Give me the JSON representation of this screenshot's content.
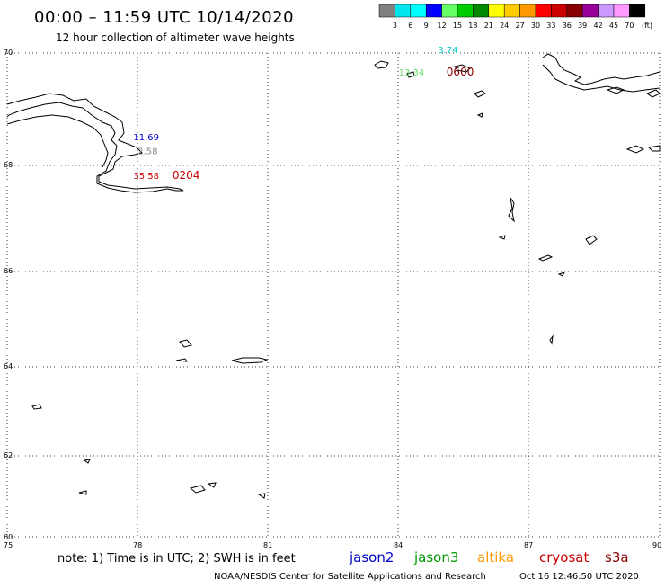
{
  "header": {
    "title": "00:00 – 11:59 UTC 10/14/2020",
    "subtitle": "12 hour collection of altimeter wave heights"
  },
  "color_scale": {
    "labels": [
      "3",
      "6",
      "9",
      "12",
      "15",
      "18",
      "21",
      "24",
      "27",
      "30",
      "33",
      "36",
      "39",
      "42",
      "45",
      "70"
    ],
    "unit": "(ft)",
    "colors": [
      "#808080",
      "#00e5ee",
      "#00ffff",
      "#0000ff",
      "#66ff66",
      "#00cc00",
      "#008800",
      "#ffff00",
      "#ffcc00",
      "#ff9900",
      "#ff0000",
      "#cc0000",
      "#880000",
      "#990099",
      "#cc99ff",
      "#ff99ff",
      "#000000"
    ]
  },
  "axes": {
    "lon_labels": [
      "75",
      "78",
      "81",
      "84",
      "87",
      "90"
    ],
    "lat_labels": [
      "70",
      "68",
      "66",
      "64",
      "62",
      "60"
    ]
  },
  "observations": [
    {
      "value": "3.74",
      "lon": 84.9,
      "lat": 70.0,
      "color": "#00cccc"
    },
    {
      "value": "13.34",
      "lon": 84.0,
      "lat": 69.6,
      "color": "#66dd66"
    },
    {
      "value": "0600",
      "lon": 85.1,
      "lat": 69.6,
      "color": "#880000",
      "is_time": true
    },
    {
      "value": "11.69",
      "lon": 77.9,
      "lat": 68.45,
      "color": "#0000cc"
    },
    {
      "value": "2.58",
      "lon": 78.0,
      "lat": 68.2,
      "color": "#888888"
    },
    {
      "value": "35.58",
      "lon": 77.9,
      "lat": 67.75,
      "color": "#cc0000"
    },
    {
      "value": "0204",
      "lon": 78.8,
      "lat": 67.75,
      "color": "#cc0000",
      "is_time": true
    }
  ],
  "footer": {
    "note": "note: 1) Time is in UTC; 2) SWH is in feet",
    "satellites": [
      {
        "name": "jason2",
        "color": "#0000cc"
      },
      {
        "name": "jason3",
        "color": "#009900"
      },
      {
        "name": "altika",
        "color": "#ff9900"
      },
      {
        "name": "cryosat",
        "color": "#cc0000"
      },
      {
        "name": "s3a",
        "color": "#880000"
      }
    ],
    "credit_left": "NOAA/NESDIS Center for Satellite Applications and Research",
    "credit_right": "Oct 16 12:46:50 UTC 2020"
  }
}
